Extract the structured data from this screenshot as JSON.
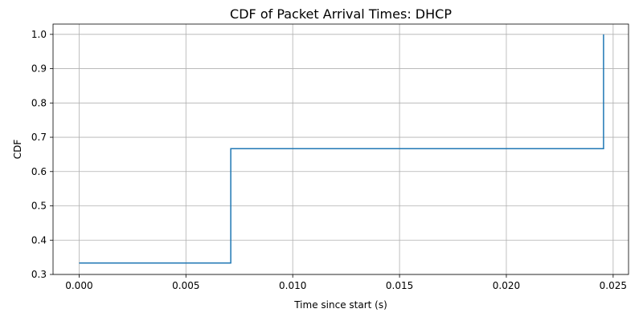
{
  "chart_data": {
    "type": "line",
    "title": "CDF of Packet Arrival Times: DHCP",
    "xlabel": "Time since start (s)",
    "ylabel": "CDF",
    "xlim": [
      -0.00122,
      0.02572
    ],
    "ylim": [
      0.3,
      1.03
    ],
    "xticks": [
      0.0,
      0.005,
      0.01,
      0.015,
      0.02,
      0.025
    ],
    "xtick_labels": [
      "0.000",
      "0.005",
      "0.010",
      "0.015",
      "0.020",
      "0.025"
    ],
    "yticks": [
      0.3,
      0.4,
      0.5,
      0.6,
      0.7,
      0.8,
      0.9,
      1.0
    ],
    "ytick_labels": [
      "0.3",
      "0.4",
      "0.5",
      "0.6",
      "0.7",
      "0.8",
      "0.9",
      "1.0"
    ],
    "grid": true,
    "drawstyle": "steps-post",
    "series": [
      {
        "color": "#1f77b4",
        "x": [
          0.0,
          0.0071,
          0.02455
        ],
        "y": [
          0.3333,
          0.6667,
          1.0
        ]
      }
    ]
  }
}
